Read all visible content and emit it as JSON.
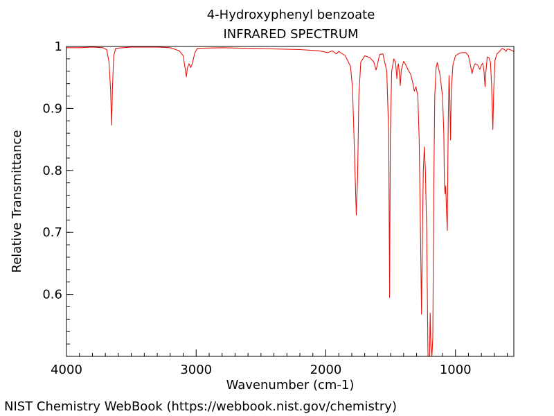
{
  "chart_data": {
    "type": "line",
    "title": "4-Hydroxyphenyl benzoate",
    "subtitle": "INFRARED SPECTRUM",
    "xlabel": "Wavenumber (cm-1)",
    "ylabel": "Relative Transmittance",
    "xlim": [
      4000,
      550
    ],
    "ylim": [
      0.5,
      1.0
    ],
    "x_ticks": [
      4000,
      3000,
      2000,
      1000
    ],
    "x_tick_labels": [
      "4000",
      "3000",
      "2000",
      "1000"
    ],
    "y_ticks": [
      0.6,
      0.7,
      0.8,
      0.9,
      1.0
    ],
    "y_tick_labels": [
      "0.6",
      "0.7",
      "0.8",
      "0.9",
      "1"
    ],
    "grid": false,
    "line_color": "#e8140c",
    "series": [
      {
        "points": [
          [
            4000,
            0.998
          ],
          [
            3900,
            0.998
          ],
          [
            3800,
            0.999
          ],
          [
            3720,
            0.998
          ],
          [
            3690,
            0.995
          ],
          [
            3672,
            0.975
          ],
          [
            3660,
            0.93
          ],
          [
            3652,
            0.873
          ],
          [
            3646,
            0.93
          ],
          [
            3636,
            0.985
          ],
          [
            3620,
            0.997
          ],
          [
            3500,
            0.999
          ],
          [
            3400,
            0.999
          ],
          [
            3300,
            0.999
          ],
          [
            3200,
            0.998
          ],
          [
            3130,
            0.993
          ],
          [
            3100,
            0.985
          ],
          [
            3085,
            0.965
          ],
          [
            3075,
            0.951
          ],
          [
            3068,
            0.965
          ],
          [
            3055,
            0.972
          ],
          [
            3042,
            0.966
          ],
          [
            3030,
            0.972
          ],
          [
            3010,
            0.99
          ],
          [
            2990,
            0.997
          ],
          [
            2800,
            0.998
          ],
          [
            2600,
            0.997
          ],
          [
            2400,
            0.996
          ],
          [
            2200,
            0.995
          ],
          [
            2050,
            0.993
          ],
          [
            1985,
            0.99
          ],
          [
            1950,
            0.993
          ],
          [
            1920,
            0.988
          ],
          [
            1900,
            0.992
          ],
          [
            1850,
            0.985
          ],
          [
            1810,
            0.968
          ],
          [
            1795,
            0.935
          ],
          [
            1785,
            0.87
          ],
          [
            1775,
            0.8
          ],
          [
            1765,
            0.728
          ],
          [
            1755,
            0.79
          ],
          [
            1745,
            0.92
          ],
          [
            1730,
            0.975
          ],
          [
            1700,
            0.985
          ],
          [
            1660,
            0.982
          ],
          [
            1630,
            0.975
          ],
          [
            1612,
            0.962
          ],
          [
            1600,
            0.973
          ],
          [
            1585,
            0.987
          ],
          [
            1560,
            0.988
          ],
          [
            1530,
            0.96
          ],
          [
            1515,
            0.86
          ],
          [
            1508,
            0.595
          ],
          [
            1502,
            0.86
          ],
          [
            1492,
            0.96
          ],
          [
            1475,
            0.98
          ],
          [
            1462,
            0.974
          ],
          [
            1452,
            0.948
          ],
          [
            1445,
            0.968
          ],
          [
            1440,
            0.972
          ],
          [
            1432,
            0.955
          ],
          [
            1426,
            0.937
          ],
          [
            1418,
            0.962
          ],
          [
            1400,
            0.976
          ],
          [
            1382,
            0.97
          ],
          [
            1365,
            0.962
          ],
          [
            1345,
            0.955
          ],
          [
            1330,
            0.942
          ],
          [
            1318,
            0.928
          ],
          [
            1305,
            0.935
          ],
          [
            1290,
            0.92
          ],
          [
            1280,
            0.85
          ],
          [
            1270,
            0.7
          ],
          [
            1262,
            0.568
          ],
          [
            1255,
            0.7
          ],
          [
            1248,
            0.8
          ],
          [
            1240,
            0.838
          ],
          [
            1232,
            0.8
          ],
          [
            1222,
            0.7
          ],
          [
            1212,
            0.5
          ],
          [
            1200,
            0.5
          ],
          [
            1195,
            0.57
          ],
          [
            1190,
            0.52
          ],
          [
            1182,
            0.5
          ],
          [
            1175,
            0.53
          ],
          [
            1168,
            0.76
          ],
          [
            1160,
            0.92
          ],
          [
            1150,
            0.966
          ],
          [
            1140,
            0.974
          ],
          [
            1120,
            0.955
          ],
          [
            1100,
            0.92
          ],
          [
            1090,
            0.86
          ],
          [
            1085,
            0.775
          ],
          [
            1080,
            0.762
          ],
          [
            1075,
            0.775
          ],
          [
            1070,
            0.74
          ],
          [
            1063,
            0.703
          ],
          [
            1056,
            0.88
          ],
          [
            1050,
            0.953
          ],
          [
            1044,
            0.92
          ],
          [
            1038,
            0.849
          ],
          [
            1032,
            0.93
          ],
          [
            1020,
            0.97
          ],
          [
            1000,
            0.985
          ],
          [
            970,
            0.989
          ],
          [
            950,
            0.99
          ],
          [
            920,
            0.99
          ],
          [
            900,
            0.985
          ],
          [
            885,
            0.97
          ],
          [
            872,
            0.956
          ],
          [
            862,
            0.966
          ],
          [
            848,
            0.972
          ],
          [
            830,
            0.97
          ],
          [
            812,
            0.963
          ],
          [
            800,
            0.97
          ],
          [
            790,
            0.973
          ],
          [
            780,
            0.96
          ],
          [
            772,
            0.935
          ],
          [
            765,
            0.96
          ],
          [
            755,
            0.983
          ],
          [
            742,
            0.982
          ],
          [
            730,
            0.974
          ],
          [
            722,
            0.94
          ],
          [
            712,
            0.866
          ],
          [
            705,
            0.93
          ],
          [
            695,
            0.978
          ],
          [
            680,
            0.988
          ],
          [
            660,
            0.992
          ],
          [
            640,
            0.997
          ],
          [
            622,
            0.995
          ],
          [
            610,
            0.992
          ],
          [
            600,
            0.996
          ],
          [
            580,
            0.995
          ],
          [
            560,
            0.993
          ],
          [
            550,
            0.992
          ]
        ]
      }
    ]
  },
  "footer": "NIST Chemistry WebBook (https://webbook.nist.gov/chemistry)"
}
